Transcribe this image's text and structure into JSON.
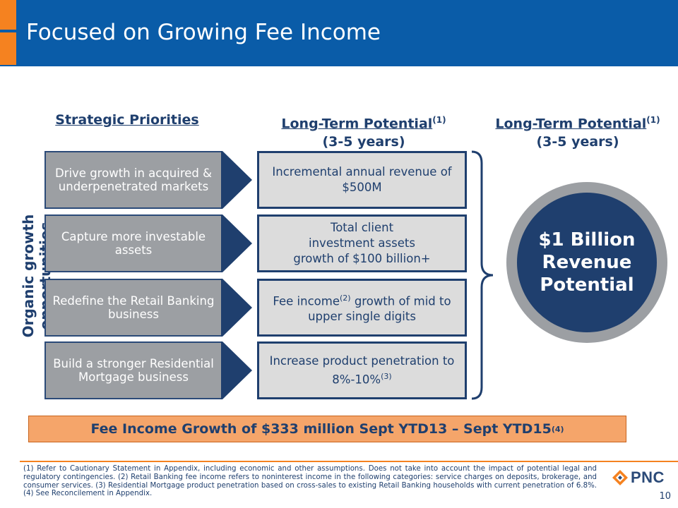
{
  "slide": {
    "title": "Focused on Growing Fee Income",
    "page_number": "10"
  },
  "columns": {
    "priorities_head": "Strategic Priorities",
    "potential_head": "Long-Term Potential",
    "potential_note": "(1)",
    "potential_years": "(3-5 years)",
    "right_head": "Long-Term Potential",
    "right_note": "(1)",
    "right_years": "(3-5 years)"
  },
  "side_label": "Organic growth opportunities",
  "priorities": [
    "Drive growth in acquired & underpenetrated markets",
    "Capture more investable assets",
    "Redefine the Retail Banking business",
    "Build a stronger Residential Mortgage business"
  ],
  "potentials": {
    "p1": "Incremental annual revenue of $500M",
    "p2_line1": "Total client",
    "p2_line2": "investment assets",
    "p2_line3": "growth of $100 billion+",
    "p3_a": "Fee income",
    "p3_note": "(2)",
    "p3_b": " growth of mid to upper single digits",
    "p4_a": "Increase product penetration to",
    "p4_b": "8%-10%",
    "p4_note": "(3)"
  },
  "circle": {
    "line1": "$1 Billion",
    "line2": "Revenue",
    "line3": "Potential"
  },
  "banner": {
    "text": "Fee Income Growth of $333 million Sept YTD13 – Sept YTD15",
    "note": "(4)"
  },
  "footnote": "(1) Refer to Cautionary Statement in Appendix, including economic and other assumptions. Does not take into account the impact of potential legal and regulatory contingencies. (2) Retail Banking fee income refers to noninterest income in the following categories: service charges on deposits, brokerage, and consumer services. (3) Residential Mortgage product penetration based on cross-sales to existing Retail Banking households with current penetration of 6.8%. (4) See Reconcilement in Appendix.",
  "logo": {
    "text": "PNC"
  },
  "colors": {
    "header_blue": "#0a5ca8",
    "navy": "#1f3f6e",
    "orange": "#f58220",
    "gray": "#9c9fa3",
    "banner_fill": "#f5a56a"
  }
}
